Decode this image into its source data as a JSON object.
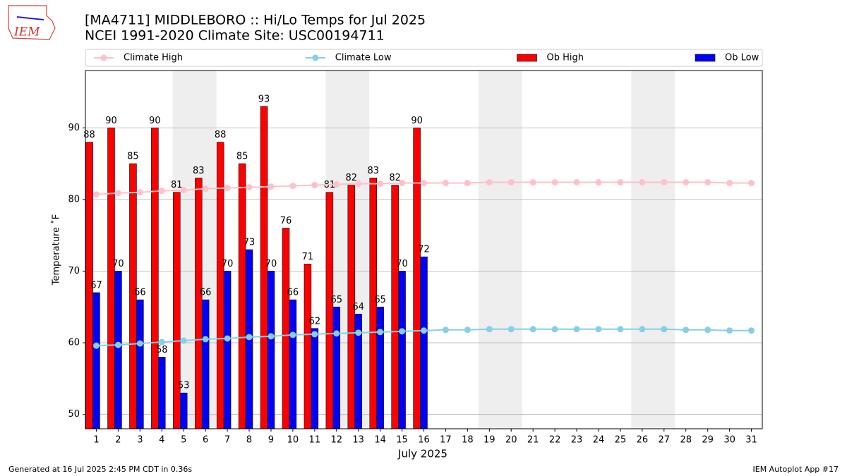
{
  "logo_text": "IEM",
  "footer_left": "Generated at 16 Jul 2025 2:45 PM CDT in 0.36s",
  "footer_right": "IEM Autoplot App #17",
  "chart_data": {
    "type": "bar",
    "title": "[MA4711] MIDDLEBORO :: Hi/Lo Temps for Jul 2025",
    "subtitle": "NCEI 1991-2020 Climate Site: USC00194711",
    "xlabel": "July 2025",
    "ylabel": "Temperature ˚F",
    "x": [
      1,
      2,
      3,
      4,
      5,
      6,
      7,
      8,
      9,
      10,
      11,
      12,
      13,
      14,
      15,
      16,
      17,
      18,
      19,
      20,
      21,
      22,
      23,
      24,
      25,
      26,
      27,
      28,
      29,
      30,
      31
    ],
    "xlim": [
      0.5,
      31.5
    ],
    "xticks": [
      1,
      2,
      3,
      4,
      5,
      6,
      7,
      8,
      9,
      10,
      11,
      12,
      13,
      14,
      15,
      16,
      17,
      18,
      19,
      20,
      21,
      22,
      23,
      24,
      25,
      26,
      27,
      28,
      29,
      30,
      31
    ],
    "ylim": [
      48,
      98
    ],
    "yticks": [
      50,
      60,
      70,
      80,
      90
    ],
    "grid": true,
    "legend": "top",
    "shaded_spans": [
      [
        4.5,
        6.5
      ],
      [
        11.5,
        13.5
      ],
      [
        18.5,
        20.5
      ],
      [
        25.5,
        27.5
      ]
    ],
    "shade_color": "#eeeeee",
    "series": [
      {
        "name": "Climate High",
        "kind": "line",
        "color": "pink",
        "values": [
          80.7,
          80.9,
          81.0,
          81.2,
          81.3,
          81.5,
          81.6,
          81.7,
          81.8,
          81.9,
          82.0,
          82.1,
          82.2,
          82.2,
          82.3,
          82.3,
          82.3,
          82.3,
          82.4,
          82.4,
          82.4,
          82.4,
          82.4,
          82.4,
          82.4,
          82.4,
          82.4,
          82.4,
          82.4,
          82.3,
          82.3
        ]
      },
      {
        "name": "Climate Low",
        "kind": "line",
        "color": "skyblue",
        "values": [
          59.6,
          59.7,
          59.9,
          60.1,
          60.3,
          60.5,
          60.6,
          60.8,
          60.9,
          61.1,
          61.2,
          61.3,
          61.4,
          61.5,
          61.6,
          61.7,
          61.8,
          61.8,
          61.9,
          61.9,
          61.9,
          61.9,
          61.9,
          61.9,
          61.9,
          61.9,
          61.9,
          61.8,
          61.8,
          61.7,
          61.7
        ]
      },
      {
        "name": "Ob High",
        "kind": "bar",
        "color": "red",
        "values": [
          88,
          90,
          85,
          90,
          81,
          83,
          88,
          85,
          93,
          76,
          71,
          81,
          82,
          83,
          82,
          90,
          null,
          null,
          null,
          null,
          null,
          null,
          null,
          null,
          null,
          null,
          null,
          null,
          null,
          null,
          null
        ]
      },
      {
        "name": "Ob Low",
        "kind": "bar",
        "color": "blue",
        "values": [
          67,
          70,
          66,
          58,
          53,
          66,
          70,
          73,
          70,
          66,
          62,
          65,
          64,
          65,
          70,
          72,
          null,
          null,
          null,
          null,
          null,
          null,
          null,
          null,
          null,
          null,
          null,
          null,
          null,
          null,
          null
        ]
      }
    ]
  }
}
